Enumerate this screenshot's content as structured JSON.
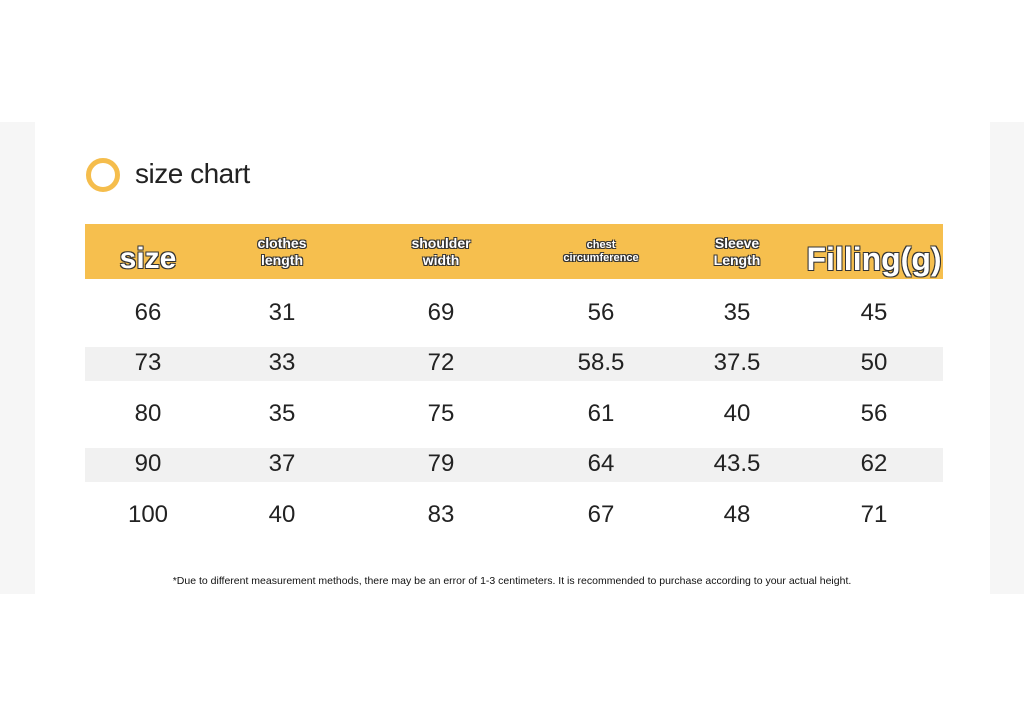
{
  "title": "size chart",
  "table": {
    "headers": [
      [
        "size"
      ],
      [
        "clothes",
        "length"
      ],
      [
        "shoulder",
        "width"
      ],
      [
        "chest",
        "circumference"
      ],
      [
        "Sleeve",
        "Length"
      ],
      [
        "Filling(g)"
      ]
    ],
    "rows": [
      [
        66,
        31,
        69,
        56,
        35,
        45
      ],
      [
        73,
        33,
        72,
        58.5,
        37.5,
        50
      ],
      [
        80,
        35,
        75,
        61,
        40,
        56
      ],
      [
        90,
        37,
        79,
        64,
        43.5,
        62
      ],
      [
        100,
        40,
        83,
        67,
        48,
        71
      ]
    ]
  },
  "footnote": "*Due to different measurement methods, there may be an error of 1-3 centimeters. It is recommended to purchase according to your actual height."
}
